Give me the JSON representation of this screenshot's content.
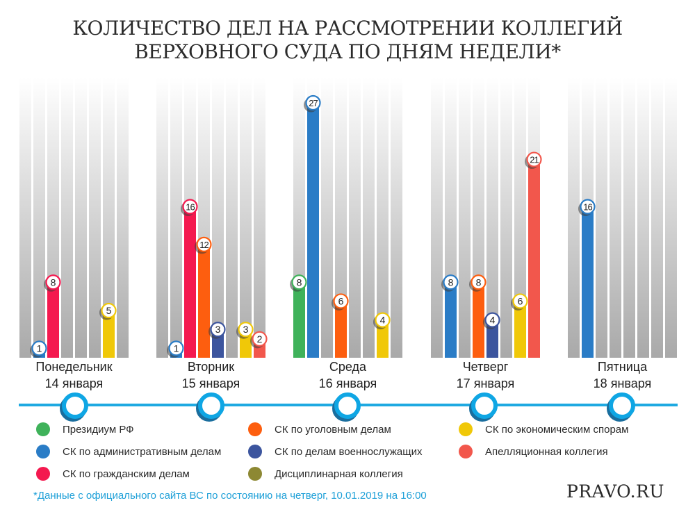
{
  "title": {
    "line1": "КОЛИЧЕСТВО ДЕЛ НА РАССМОТРЕНИИ КОЛЛЕГИЙ",
    "line2": "ВЕРХОВНОГО СУДА ПО ДНЯМ НЕДЕЛИ*"
  },
  "chart_data": {
    "type": "bar",
    "title": "КОЛИЧЕСТВО ДЕЛ НА РАССМОТРЕНИИ КОЛЛЕГИЙ ВЕРХОВНОГО СУДА ПО ДНЯМ НЕДЕЛИ*",
    "xlabel": "",
    "ylabel": "",
    "ylim": [
      0,
      27
    ],
    "grid": false,
    "legend_position": "bottom",
    "categories": [
      {
        "day": "Понедельник",
        "date": "14 января"
      },
      {
        "day": "Вторник",
        "date": "15 января"
      },
      {
        "day": "Среда",
        "date": "16 января"
      },
      {
        "day": "Четверг",
        "date": "17 января"
      },
      {
        "day": "Пятница",
        "date": "18 января"
      }
    ],
    "series": [
      {
        "name": "Президиум РФ",
        "color": "#3fb25a",
        "values": [
          null,
          null,
          8,
          null,
          null
        ]
      },
      {
        "name": "СК по административным делам",
        "color": "#2a7cc6",
        "values": [
          1,
          1,
          27,
          8,
          16
        ]
      },
      {
        "name": "СК по гражданским делам",
        "color": "#f4194f",
        "values": [
          8,
          16,
          null,
          null,
          null
        ]
      },
      {
        "name": "СК по уголовным делам",
        "color": "#fd5e0f",
        "values": [
          null,
          12,
          6,
          8,
          null
        ]
      },
      {
        "name": "СК по делам военнослужащих",
        "color": "#3c559e",
        "values": [
          null,
          3,
          null,
          4,
          null
        ]
      },
      {
        "name": "Дисциплинарная коллегия",
        "color": "#8d8833",
        "values": [
          null,
          null,
          null,
          null,
          null
        ]
      },
      {
        "name": "СК по экономическим спорам",
        "color": "#f0c808",
        "values": [
          5,
          3,
          4,
          6,
          null
        ]
      },
      {
        "name": "Апелляционная коллегия",
        "color": "#f2574c",
        "values": [
          null,
          2,
          null,
          21,
          null
        ]
      }
    ]
  },
  "legend": [
    {
      "label": "Президиум РФ",
      "color": "#3fb25a"
    },
    {
      "label": "СК по административным делам",
      "color": "#2a7cc6"
    },
    {
      "label": "СК по гражданским делам",
      "color": "#f4194f"
    },
    {
      "label": "СК по уголовным делам",
      "color": "#fd5e0f"
    },
    {
      "label": "СК по делам военнослужащих",
      "color": "#3c559e"
    },
    {
      "label": "Дисциплинарная коллегия",
      "color": "#8d8833"
    },
    {
      "label": "СК по экономическим спорам",
      "color": "#f0c808"
    },
    {
      "label": "Апелляционная коллегия",
      "color": "#f2574c"
    }
  ],
  "colors": {
    "timeline": "#1ea9e1",
    "footnote": "#1ea0d8"
  },
  "footnote": "*Данные с официального сайта ВС по состоянию на четверг, 10.01.2019 на 16:00",
  "brand": "PRAVO.RU"
}
